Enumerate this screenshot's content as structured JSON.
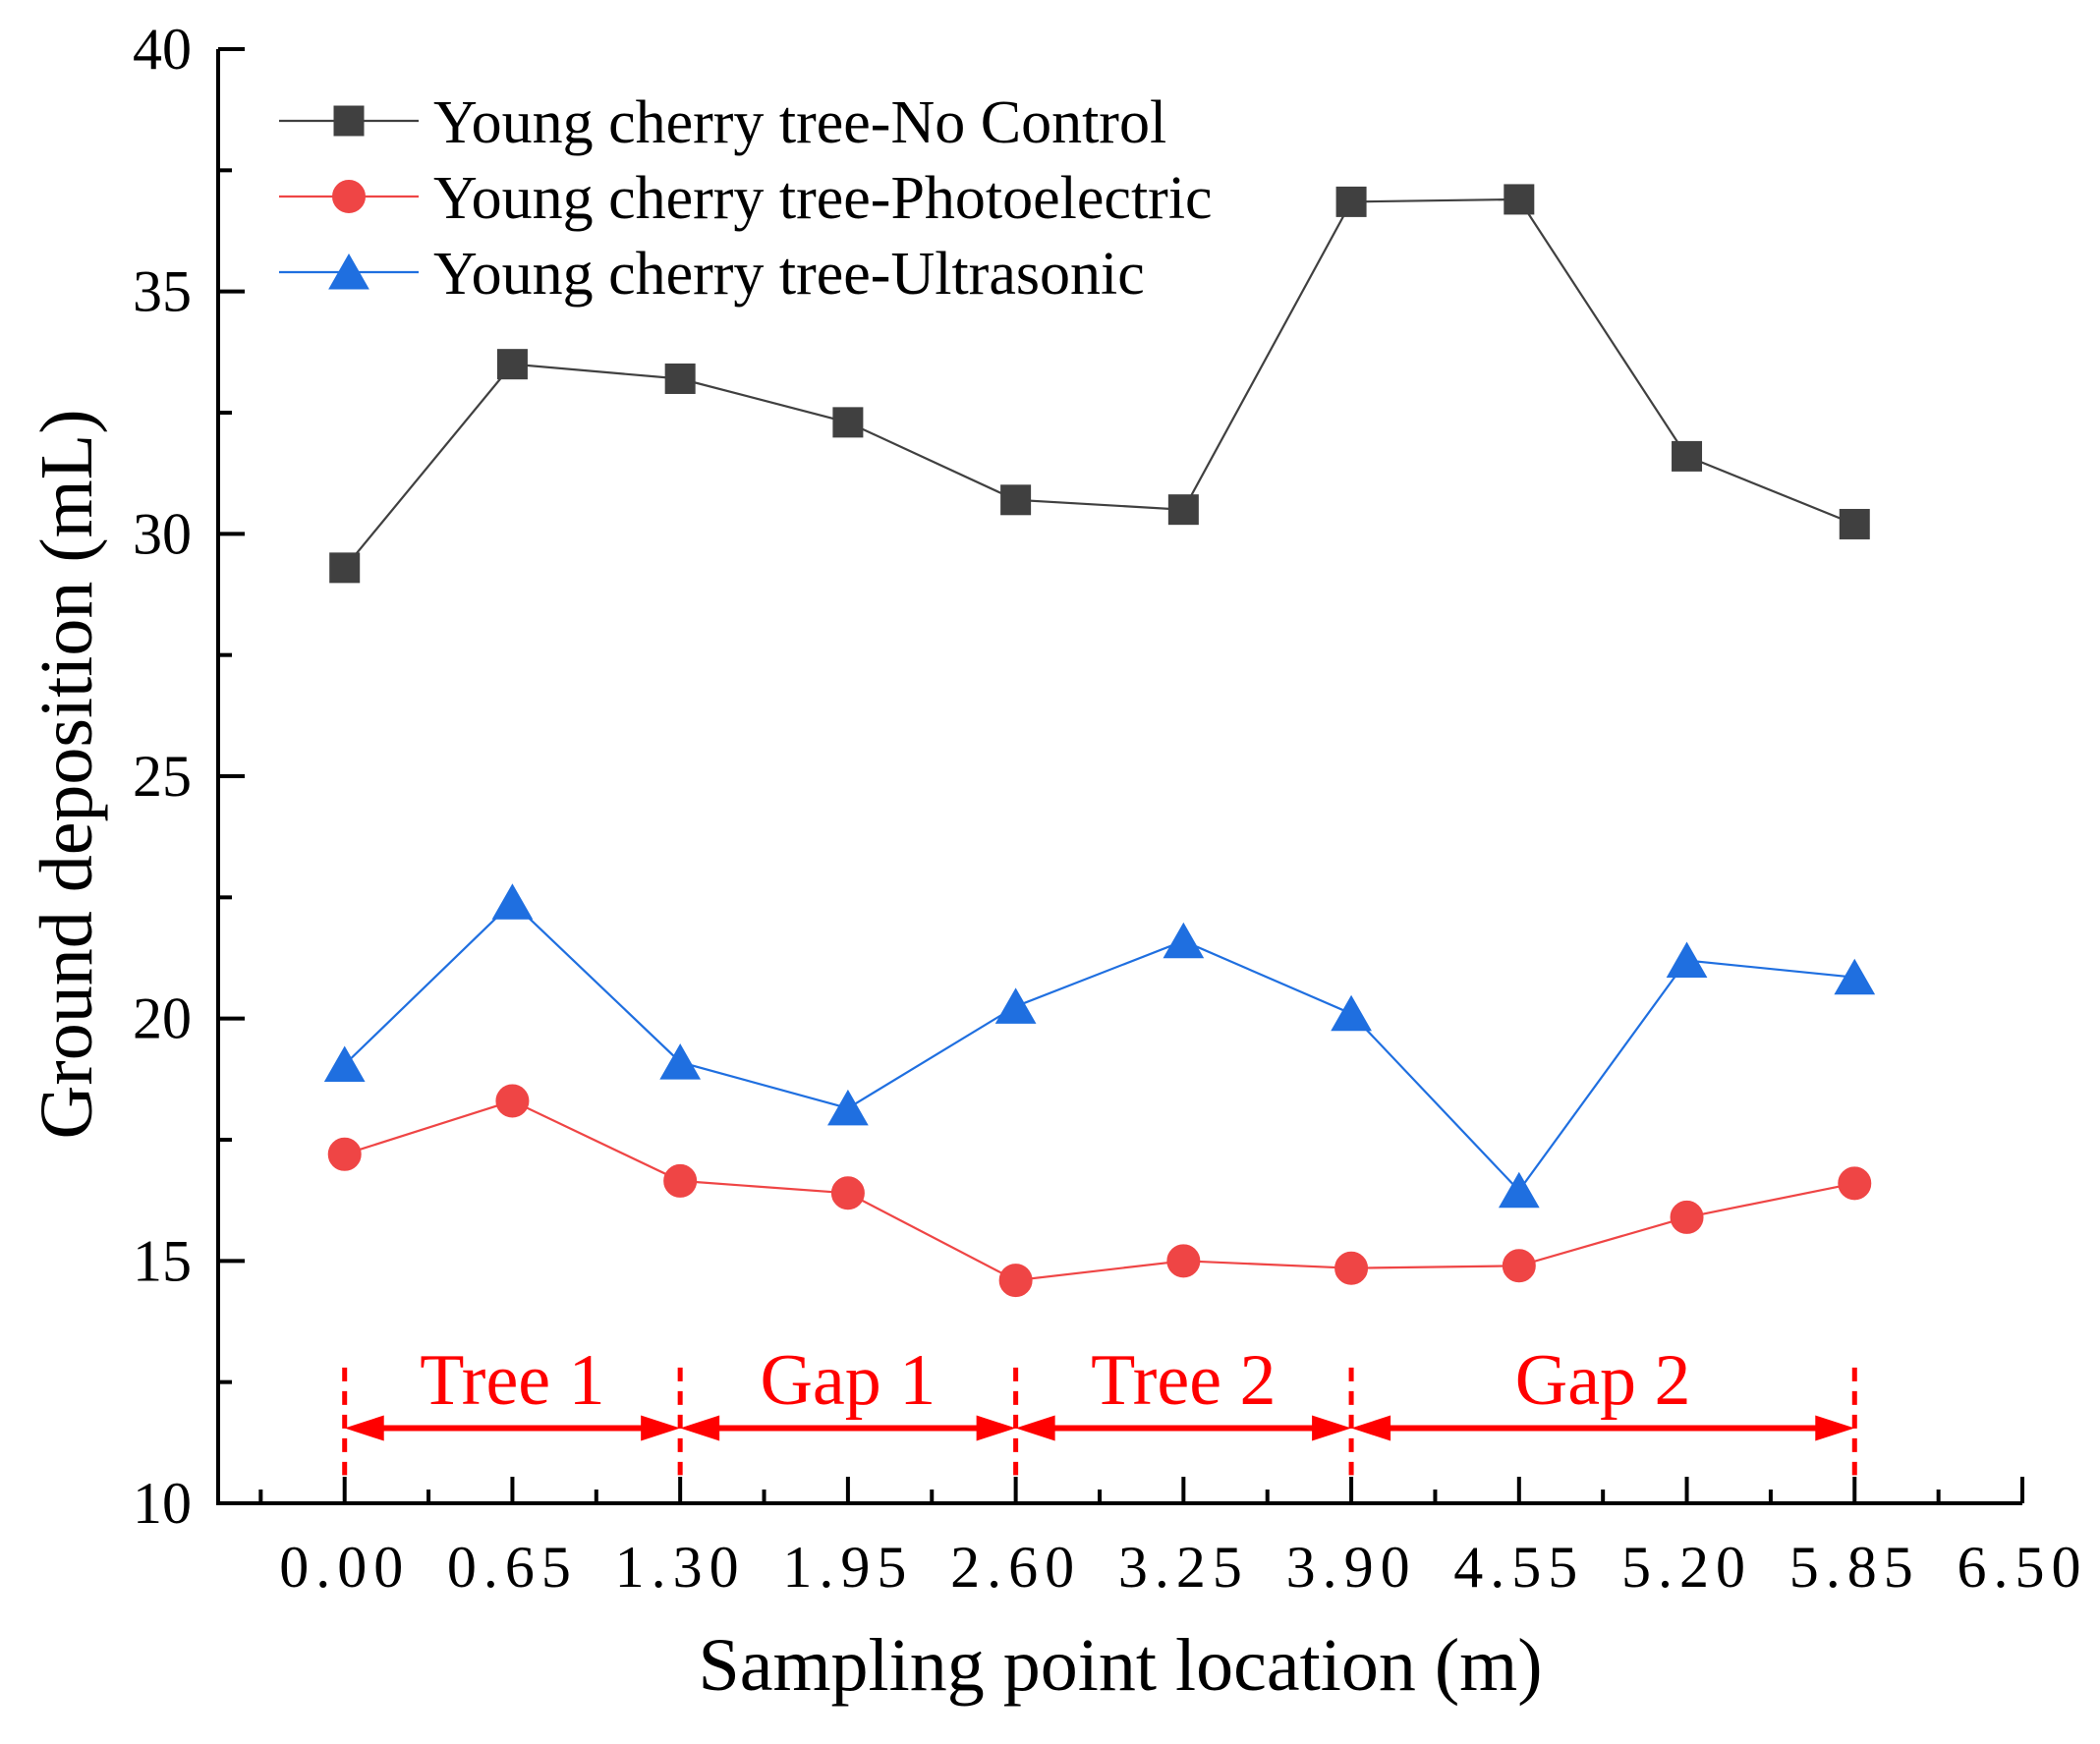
{
  "chart_data": {
    "type": "line",
    "xlabel": "Sampling point location (m)",
    "ylabel": "Ground deposition (mL)",
    "xlim": [
      -0.49,
      6.5
    ],
    "ylim": [
      10,
      40
    ],
    "x_ticks": [
      "0.00",
      "0.65",
      "1.30",
      "1.95",
      "2.60",
      "3.25",
      "3.90",
      "4.55",
      "5.20",
      "5.85",
      "6.50"
    ],
    "y_ticks": [
      "10",
      "15",
      "20",
      "25",
      "30",
      "35",
      "40"
    ],
    "grid": false,
    "legend_position": "top-left",
    "x": [
      0,
      0.65,
      1.3,
      1.95,
      2.6,
      3.25,
      3.9,
      4.55,
      5.2,
      5.85
    ],
    "series": [
      {
        "name": "Young cherry tree-No Control",
        "marker": "square",
        "color": "#404040",
        "values": [
          29.3,
          33.5,
          33.2,
          32.3,
          30.7,
          30.5,
          36.85,
          36.9,
          31.6,
          30.2
        ]
      },
      {
        "name": "Young cherry tree-Photoelectric",
        "marker": "circle",
        "color": "#ef4545",
        "values": [
          17.2,
          18.3,
          16.65,
          16.4,
          14.6,
          15.0,
          14.85,
          14.9,
          15.9,
          16.6
        ]
      },
      {
        "name": "Young cherry tree-Ultrasonic",
        "marker": "triangle",
        "color": "#1f6fe0",
        "values": [
          19.05,
          22.4,
          19.1,
          18.15,
          20.25,
          21.6,
          20.1,
          16.45,
          21.2,
          20.85
        ]
      }
    ],
    "annotations": [
      {
        "label": "Tree 1",
        "from": 0,
        "to": 1.3
      },
      {
        "label": "Gap 1",
        "from": 1.3,
        "to": 2.6
      },
      {
        "label": "Tree 2",
        "from": 2.6,
        "to": 3.9
      },
      {
        "label": "Gap 2",
        "from": 3.9,
        "to": 5.85
      }
    ],
    "annotation_color": "#ff0000"
  }
}
